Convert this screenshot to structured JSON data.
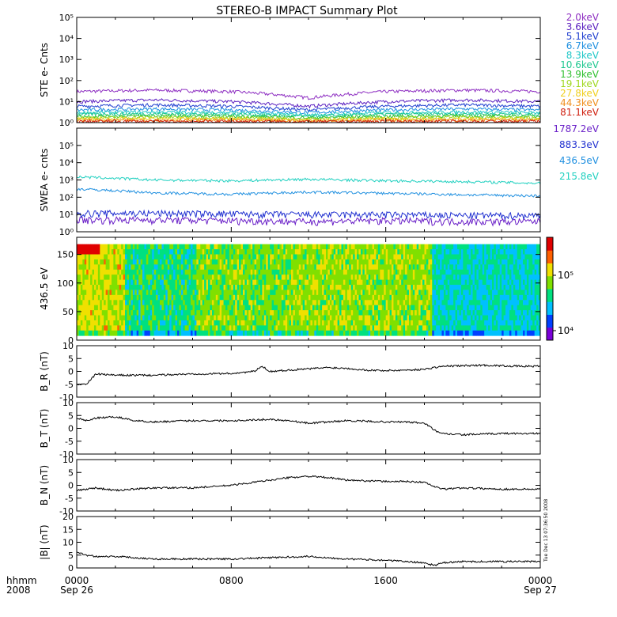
{
  "title": "STEREO-B IMPACT Summary Plot",
  "footer": {
    "row_label_top": "hhmm",
    "row_label_bottom": "2008",
    "ticks": [
      {
        "time": "0000",
        "date": "Sep 26"
      },
      {
        "time": "0800",
        "date": ""
      },
      {
        "time": "1600",
        "date": ""
      },
      {
        "time": "0000",
        "date": "Sep 27"
      }
    ]
  },
  "timestamp": "Tue Dec 13 07:36:50 2008",
  "colors": {
    "axis": "#000000",
    "trace": "#000000"
  },
  "chart_data": [
    {
      "type": "line",
      "name": "ste",
      "ylabel": "STE e- Cnts",
      "yscale": "log",
      "ylim": [
        1,
        100000
      ],
      "y_ticks": [
        "10⁰",
        "10¹",
        "10²",
        "10³",
        "10⁴",
        "10⁵"
      ],
      "x_hours": [
        0,
        24
      ],
      "legend_position": "right",
      "series": [
        {
          "name": "2.0keV",
          "color": "#8e2fc2",
          "level": [
            30,
            35,
            30,
            15,
            30,
            35,
            30
          ]
        },
        {
          "name": "3.6keV",
          "color": "#5a1fc0",
          "level": [
            10,
            12,
            10,
            6,
            10,
            12,
            10
          ]
        },
        {
          "name": "5.1keV",
          "color": "#2040d0",
          "level": [
            6,
            7,
            6,
            4,
            6,
            7,
            6
          ]
        },
        {
          "name": "6.7keV",
          "color": "#1e90e0",
          "level": [
            4,
            4.5,
            4,
            3,
            4,
            4.5,
            4
          ]
        },
        {
          "name": "8.3keV",
          "color": "#20c8c8",
          "level": [
            3,
            3.2,
            3,
            2.3,
            3,
            3.2,
            3
          ]
        },
        {
          "name": "10.6keV",
          "color": "#20c890",
          "level": [
            2.5,
            2.6,
            2.5,
            2,
            2.5,
            2.6,
            2.5
          ]
        },
        {
          "name": "13.9keV",
          "color": "#30c030",
          "level": [
            2,
            2.1,
            2,
            1.7,
            2,
            2.1,
            2
          ]
        },
        {
          "name": "19.1keV",
          "color": "#a0d820",
          "level": [
            1.7,
            1.8,
            1.7,
            1.5,
            1.7,
            1.8,
            1.7
          ]
        },
        {
          "name": "27.8keV",
          "color": "#f0d020",
          "level": [
            1.5,
            1.5,
            1.5,
            1.3,
            1.5,
            1.5,
            1.5
          ]
        },
        {
          "name": "44.3keV",
          "color": "#f09020",
          "level": [
            1.3,
            1.3,
            1.3,
            1.2,
            1.3,
            1.3,
            1.3
          ]
        },
        {
          "name": "81.1keV",
          "color": "#d02010",
          "level": [
            1.15,
            1.15,
            1.15,
            1.1,
            1.15,
            1.15,
            1.15
          ]
        }
      ]
    },
    {
      "type": "line",
      "name": "swea",
      "ylabel": "SWEA e- cnts",
      "yscale": "log",
      "ylim": [
        1,
        1000000
      ],
      "y_ticks": [
        "10⁰",
        "10¹",
        "10²",
        "10³",
        "10⁴",
        "10⁵"
      ],
      "x_hours": [
        0,
        24
      ],
      "legend_position": "right",
      "series": [
        {
          "name": "1787.2eV",
          "color": "#6a20c8",
          "level": [
            5,
            5,
            4.5,
            4,
            4.5,
            4,
            4
          ]
        },
        {
          "name": "883.3eV",
          "color": "#2030d0",
          "level": [
            12,
            12,
            11,
            10,
            10,
            9,
            9
          ]
        },
        {
          "name": "436.5eV",
          "color": "#2090e0",
          "level": [
            300,
            180,
            150,
            200,
            170,
            140,
            120
          ]
        },
        {
          "name": "215.8eV",
          "color": "#20d0c0",
          "level": [
            1500,
            1000,
            900,
            1100,
            900,
            800,
            650
          ]
        }
      ]
    },
    {
      "type": "heatmap",
      "name": "pad",
      "ylabel": "436.5 eV",
      "ylim": [
        0,
        180
      ],
      "y_ticks": [
        "0",
        "50",
        "100",
        "150"
      ],
      "x_hours": [
        0,
        24
      ],
      "colorbar_ticks": [
        "10⁵",
        "10⁴"
      ],
      "colormap": [
        "#7a00d8",
        "#0040ff",
        "#00c0ff",
        "#00e080",
        "#80e000",
        "#f0e000",
        "#ff6000",
        "#e00000"
      ],
      "segments": [
        {
          "x0": 0.0,
          "x1": 2.5,
          "level": 0.65
        },
        {
          "x0": 2.5,
          "x1": 6.2,
          "level": 0.45
        },
        {
          "x0": 6.2,
          "x1": 10.8,
          "level": 0.55
        },
        {
          "x0": 10.8,
          "x1": 18.4,
          "level": 0.58
        },
        {
          "x0": 18.4,
          "x1": 24.0,
          "level": 0.38
        }
      ]
    },
    {
      "type": "line",
      "name": "br",
      "ylabel": "B_R (nT)",
      "ylim": [
        -10,
        10
      ],
      "y_ticks": [
        "-10",
        "-5",
        "0",
        "5",
        "10"
      ],
      "x_hours": [
        0,
        24
      ],
      "x": [
        0,
        0.5,
        1,
        2,
        4,
        6,
        8,
        9.2,
        9.6,
        10,
        11,
        12,
        13,
        14,
        15,
        16,
        17,
        18,
        18.5,
        19,
        20,
        21,
        22,
        23,
        24
      ],
      "y": [
        -5,
        -5,
        -1,
        -1.5,
        -1.5,
        -1,
        -0.8,
        0,
        2,
        0,
        0.5,
        1,
        1.5,
        1.2,
        0.5,
        0.3,
        0.5,
        0.8,
        1.5,
        2,
        2.2,
        2.4,
        2.2,
        2,
        2
      ]
    },
    {
      "type": "line",
      "name": "bt",
      "ylabel": "B_T (nT)",
      "ylim": [
        -10,
        10
      ],
      "y_ticks": [
        "-10",
        "-5",
        "0",
        "5",
        "10"
      ],
      "x_hours": [
        0,
        24
      ],
      "x": [
        0,
        0.5,
        1,
        2,
        3,
        4,
        6,
        8,
        10,
        11,
        12,
        13,
        14,
        16,
        17,
        18,
        18.4,
        18.8,
        20,
        22,
        24
      ],
      "y": [
        4,
        3,
        4,
        4.5,
        3,
        2.5,
        3,
        3,
        3.5,
        3,
        2,
        2.5,
        3,
        2.5,
        2.5,
        2,
        0,
        -2,
        -2.5,
        -2,
        -2
      ]
    },
    {
      "type": "line",
      "name": "bn",
      "ylabel": "B_N (nT)",
      "ylim": [
        -10,
        10
      ],
      "y_ticks": [
        "-10",
        "-5",
        "0",
        "5",
        "10"
      ],
      "x_hours": [
        0,
        24
      ],
      "x": [
        0,
        1,
        2,
        4,
        6,
        8,
        10,
        11,
        12,
        13,
        14,
        16,
        17,
        18,
        18.5,
        19,
        20,
        22,
        24
      ],
      "y": [
        -2,
        -1,
        -2,
        -1,
        -1,
        0,
        2,
        3,
        3.5,
        3,
        2,
        1.5,
        1.5,
        1.2,
        -0.5,
        -1.5,
        -1,
        -1.5,
        -1.5
      ]
    },
    {
      "type": "line",
      "name": "bmag",
      "ylabel": "|B| (nT)",
      "ylim": [
        0,
        20
      ],
      "y_ticks": [
        "0",
        "5",
        "10",
        "15",
        "20"
      ],
      "x_hours": [
        0,
        24
      ],
      "x": [
        0,
        0.5,
        1,
        2,
        4,
        6,
        8,
        10,
        12,
        14,
        16,
        17,
        18,
        18.5,
        19,
        20,
        22,
        24
      ],
      "y": [
        6,
        5,
        4.5,
        4.5,
        3.5,
        3.5,
        3.5,
        4,
        4.5,
        3.5,
        3,
        2.5,
        2,
        1,
        2,
        2.5,
        2.5,
        2.5
      ]
    }
  ]
}
